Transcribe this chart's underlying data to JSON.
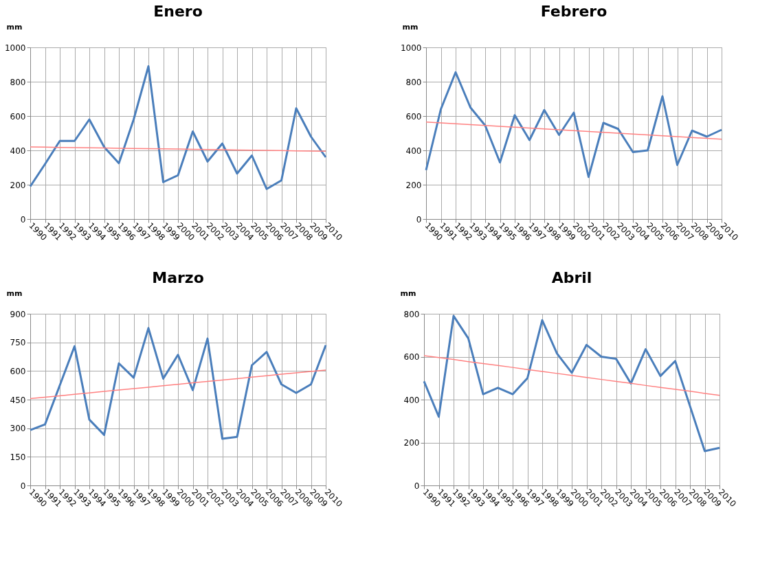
{
  "chart_data": [
    {
      "type": "line",
      "title": "Enero",
      "ylabel": "mm",
      "categories": [
        "1990",
        "1991",
        "1992",
        "1993",
        "1994",
        "1995",
        "1996",
        "1997",
        "1998",
        "1999",
        "2000",
        "2001",
        "2002",
        "2003",
        "2004",
        "2005",
        "2006",
        "2007",
        "2008",
        "2009",
        "2010"
      ],
      "ylim": [
        0,
        1000
      ],
      "yticks": [
        0,
        200,
        400,
        600,
        800,
        1000
      ],
      "grid": true,
      "series": [
        {
          "color": "#4a7ebb",
          "values": [
            190,
            320,
            455,
            455,
            580,
            420,
            325,
            580,
            890,
            215,
            255,
            510,
            335,
            440,
            265,
            370,
            175,
            225,
            645,
            480,
            360
          ]
        },
        {
          "type": "line",
          "color": "#ff8080",
          "values": [
            420,
            419,
            417,
            416,
            415,
            414,
            412,
            411,
            410,
            409,
            408,
            406,
            405,
            404,
            402,
            401,
            400,
            399,
            397,
            396,
            395
          ]
        }
      ]
    },
    {
      "type": "line",
      "title": "Febrero",
      "ylabel": "mm",
      "categories": [
        "1990",
        "1991",
        "1992",
        "1993",
        "1994",
        "1995",
        "1996",
        "1997",
        "1998",
        "1999",
        "2000",
        "2001",
        "2002",
        "2003",
        "2004",
        "2005",
        "2006",
        "2007",
        "2008",
        "2009",
        "2010"
      ],
      "ylim": [
        0,
        1000
      ],
      "yticks": [
        0,
        200,
        400,
        600,
        800,
        1000
      ],
      "grid": true,
      "series": [
        {
          "color": "#4a7ebb",
          "values": [
            285,
            640,
            855,
            650,
            545,
            330,
            605,
            460,
            635,
            490,
            620,
            245,
            560,
            525,
            390,
            400,
            715,
            315,
            515,
            480,
            520
          ]
        },
        {
          "type": "line",
          "color": "#ff8080",
          "values": [
            565,
            560,
            555,
            550,
            545,
            540,
            535,
            530,
            525,
            520,
            515,
            510,
            505,
            500,
            495,
            490,
            485,
            480,
            475,
            470,
            465
          ]
        }
      ]
    },
    {
      "type": "line",
      "title": "Marzo",
      "ylabel": "mm",
      "categories": [
        "1990",
        "1991",
        "1992",
        "1993",
        "1994",
        "1995",
        "1996",
        "1997",
        "1998",
        "1999",
        "2000",
        "2001",
        "2002",
        "2003",
        "2004",
        "2005",
        "2006",
        "2007",
        "2008",
        "2009",
        "2010"
      ],
      "ylim": [
        0,
        900
      ],
      "yticks": [
        0,
        150,
        300,
        450,
        600,
        750,
        900
      ],
      "grid": true,
      "series": [
        {
          "color": "#4a7ebb",
          "values": [
            290,
            320,
            525,
            730,
            345,
            265,
            640,
            565,
            825,
            560,
            685,
            500,
            770,
            245,
            255,
            630,
            700,
            530,
            485,
            530,
            735
          ]
        },
        {
          "type": "line",
          "color": "#ff8080",
          "values": [
            455,
            463,
            470,
            478,
            485,
            493,
            500,
            508,
            515,
            523,
            530,
            538,
            545,
            553,
            560,
            568,
            575,
            583,
            590,
            598,
            605
          ]
        }
      ]
    },
    {
      "type": "line",
      "title": "Abril",
      "ylabel": "mm",
      "categories": [
        "1990",
        "1991",
        "1992",
        "1993",
        "1994",
        "1995",
        "1996",
        "1997",
        "1998",
        "1999",
        "2000",
        "2001",
        "2002",
        "2003",
        "2004",
        "2005",
        "2006",
        "2007",
        "2008",
        "2009",
        "2010"
      ],
      "ylim": [
        0,
        800
      ],
      "yticks": [
        0,
        200,
        400,
        600,
        800
      ],
      "grid": true,
      "series": [
        {
          "color": "#4a7ebb",
          "values": [
            485,
            320,
            790,
            685,
            425,
            455,
            425,
            500,
            770,
            615,
            525,
            655,
            600,
            590,
            475,
            635,
            510,
            580,
            370,
            160,
            175
          ]
        },
        {
          "type": "line",
          "color": "#ff8080",
          "values": [
            605,
            596,
            587,
            577,
            568,
            559,
            550,
            540,
            531,
            522,
            513,
            503,
            494,
            485,
            476,
            466,
            457,
            448,
            439,
            429,
            420
          ]
        }
      ]
    }
  ]
}
